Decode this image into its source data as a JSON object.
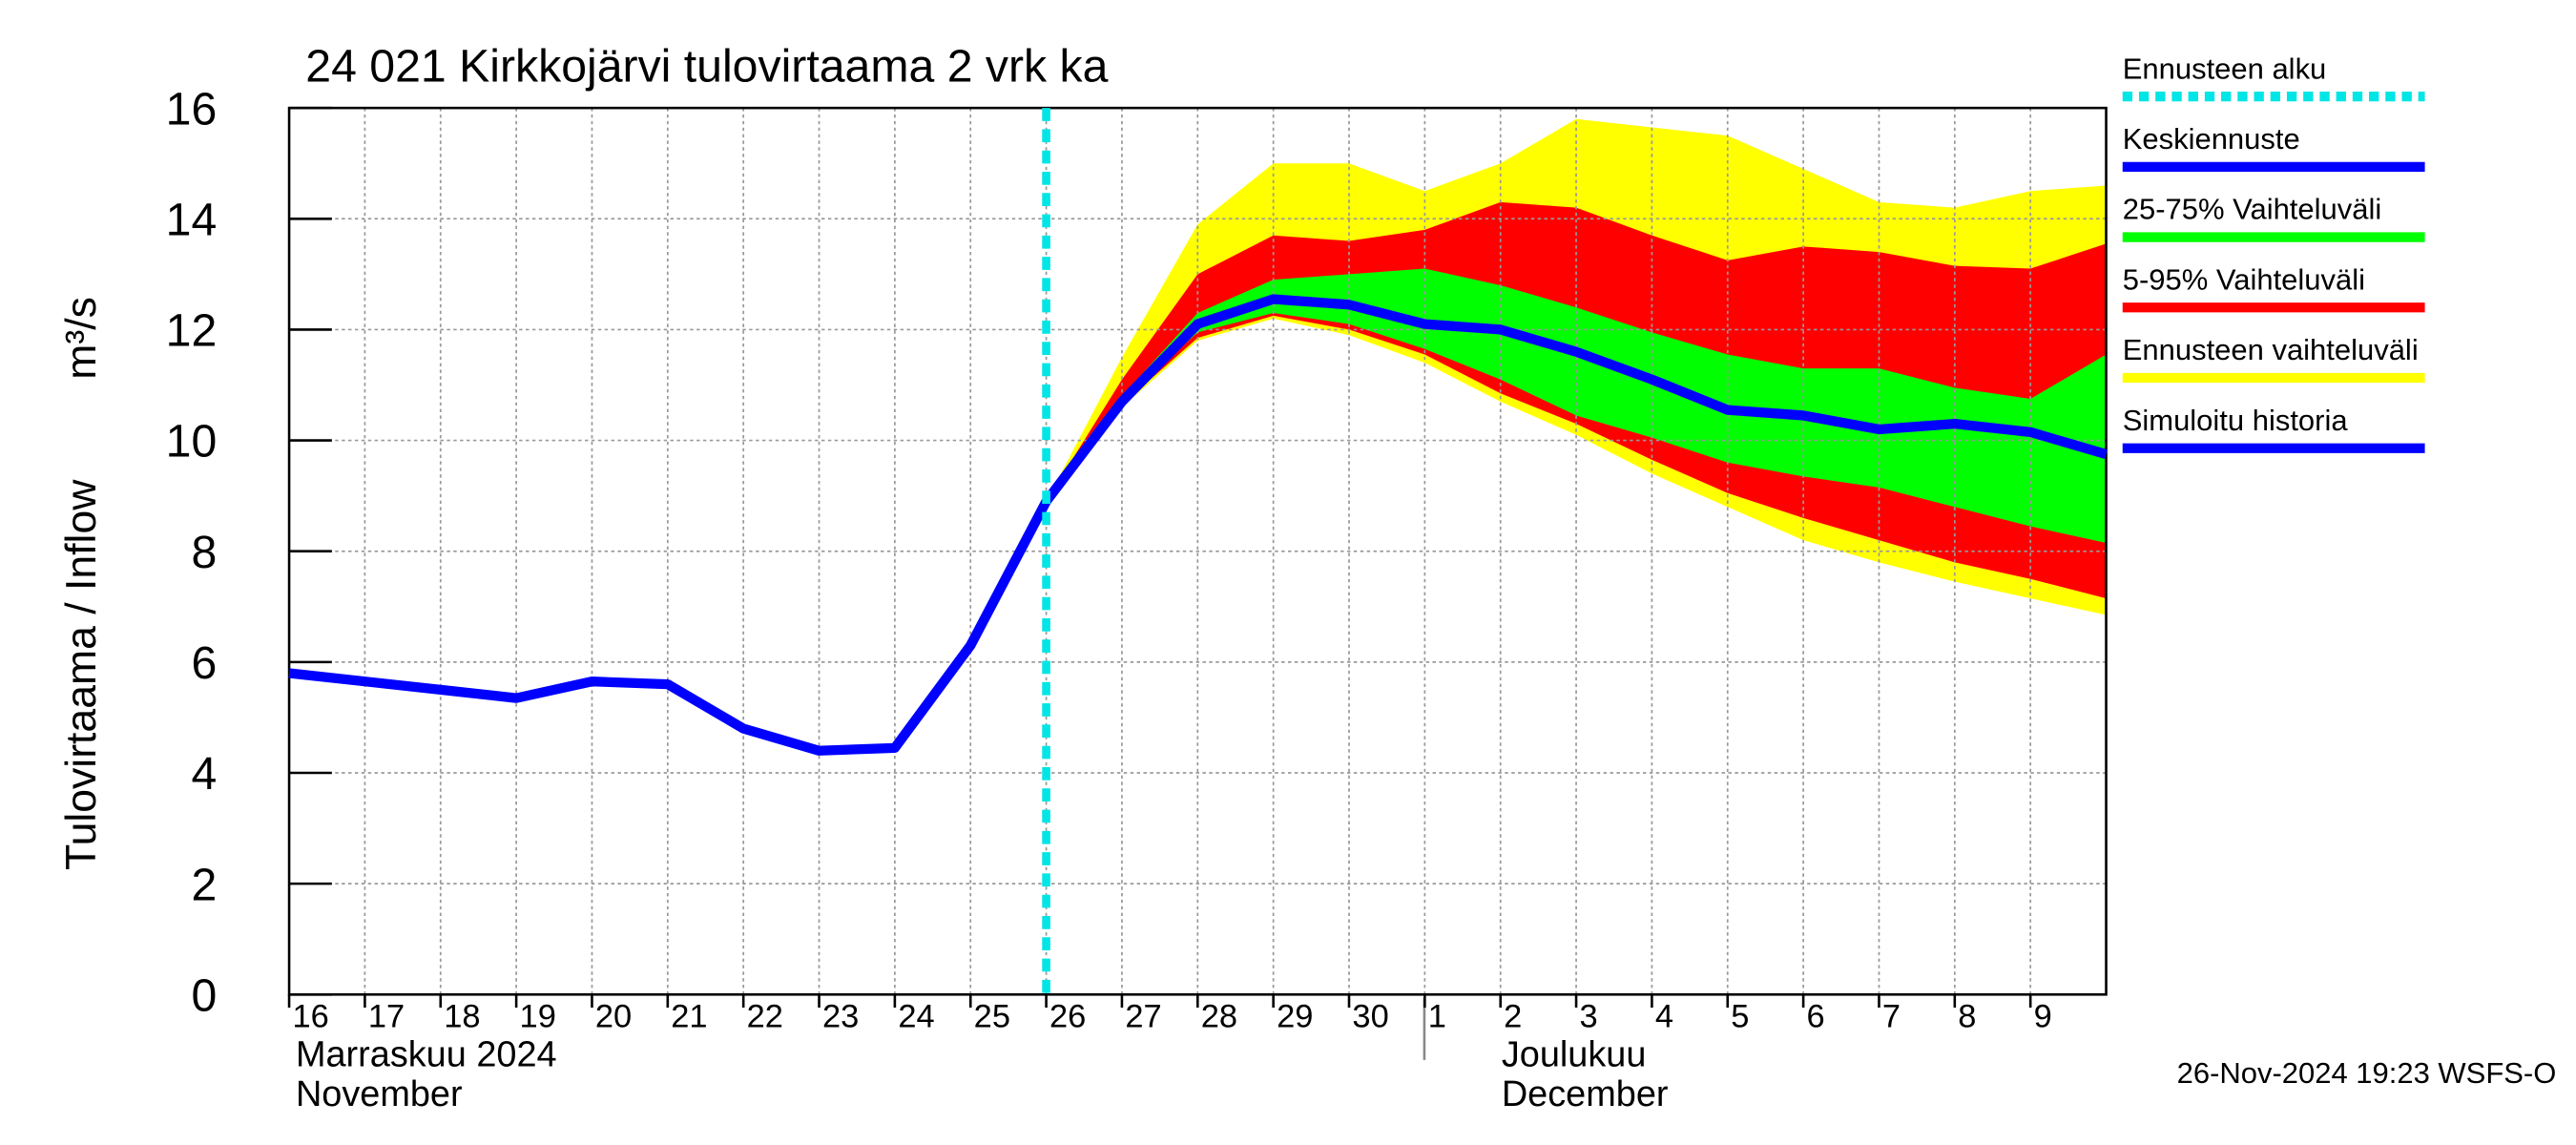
{
  "chart_data": {
    "type": "forecast-band",
    "title": "24 021 Kirkkojärvi tulovirtaama 2 vrk ka",
    "y_label": "Tulovirtaama / Inflow",
    "y_unit": "m³/s",
    "month_labels": [
      "Marraskuu 2024",
      "November",
      "Joulukuu",
      "December"
    ],
    "timestamp": "26-Nov-2024 19:23 WSFS-O",
    "ylim": [
      0,
      16
    ],
    "yticks": [
      0,
      2,
      4,
      6,
      8,
      10,
      12,
      14,
      16
    ],
    "xlim": [
      "2024-11-16",
      "2024-12-10"
    ],
    "xticks": [
      {
        "value": "2024-11-16",
        "label": "16"
      },
      {
        "value": "2024-11-17",
        "label": "17"
      },
      {
        "value": "2024-11-18",
        "label": "18"
      },
      {
        "value": "2024-11-19",
        "label": "19"
      },
      {
        "value": "2024-11-20",
        "label": "20"
      },
      {
        "value": "2024-11-21",
        "label": "21"
      },
      {
        "value": "2024-11-22",
        "label": "22"
      },
      {
        "value": "2024-11-23",
        "label": "23"
      },
      {
        "value": "2024-11-24",
        "label": "24"
      },
      {
        "value": "2024-11-25",
        "label": "25"
      },
      {
        "value": "2024-11-26",
        "label": "26"
      },
      {
        "value": "2024-11-27",
        "label": "27"
      },
      {
        "value": "2024-11-28",
        "label": "28"
      },
      {
        "value": "2024-11-29",
        "label": "29"
      },
      {
        "value": "2024-11-30",
        "label": "30"
      },
      {
        "value": "2024-12-01",
        "label": "1"
      },
      {
        "value": "2024-12-02",
        "label": "2"
      },
      {
        "value": "2024-12-03",
        "label": "3"
      },
      {
        "value": "2024-12-04",
        "label": "4"
      },
      {
        "value": "2024-12-05",
        "label": "5"
      },
      {
        "value": "2024-12-06",
        "label": "6"
      },
      {
        "value": "2024-12-07",
        "label": "7"
      },
      {
        "value": "2024-12-08",
        "label": "8"
      },
      {
        "value": "2024-12-09",
        "label": "9"
      }
    ],
    "grid": true,
    "forecast_start": {
      "name": "Ennusteen alku",
      "x": "2024-11-26",
      "color": "#00e5e5"
    },
    "series": [
      {
        "name": "Keskiennuste",
        "color": "#0000ff",
        "x": [
          "2024-11-26",
          "2024-11-27",
          "2024-11-28",
          "2024-11-29",
          "2024-11-30",
          "2024-12-01",
          "2024-12-02",
          "2024-12-03",
          "2024-12-04",
          "2024-12-05",
          "2024-12-06",
          "2024-12-07",
          "2024-12-08",
          "2024-12-09",
          "2024-12-10"
        ],
        "values": [
          8.9,
          10.7,
          12.1,
          12.55,
          12.45,
          12.1,
          12.0,
          11.6,
          11.1,
          10.55,
          10.45,
          10.2,
          10.3,
          10.15,
          9.75
        ]
      },
      {
        "name": "25-75% Vaihteluväli",
        "color": "#00ff00",
        "x": [
          "2024-11-26",
          "2024-11-27",
          "2024-11-28",
          "2024-11-29",
          "2024-11-30",
          "2024-12-01",
          "2024-12-02",
          "2024-12-03",
          "2024-12-04",
          "2024-12-05",
          "2024-12-06",
          "2024-12-07",
          "2024-12-08",
          "2024-12-09",
          "2024-12-10"
        ],
        "low": [
          8.9,
          10.7,
          11.95,
          12.3,
          12.1,
          11.65,
          11.1,
          10.45,
          10.05,
          9.6,
          9.35,
          9.15,
          8.8,
          8.45,
          8.15
        ],
        "high": [
          8.9,
          10.8,
          12.3,
          12.9,
          13.0,
          13.1,
          12.8,
          12.4,
          11.95,
          11.55,
          11.3,
          11.3,
          10.95,
          10.75,
          11.55
        ]
      },
      {
        "name": "5-95% Vaihteluväli",
        "color": "#ff0000",
        "x": [
          "2024-11-26",
          "2024-11-27",
          "2024-11-28",
          "2024-11-29",
          "2024-11-30",
          "2024-12-01",
          "2024-12-02",
          "2024-12-03",
          "2024-12-04",
          "2024-12-05",
          "2024-12-06",
          "2024-12-07",
          "2024-12-08",
          "2024-12-09",
          "2024-12-10"
        ],
        "low": [
          8.9,
          10.65,
          11.85,
          12.25,
          12.0,
          11.55,
          10.85,
          10.3,
          9.65,
          9.05,
          8.6,
          8.2,
          7.8,
          7.5,
          7.15
        ],
        "high": [
          8.9,
          11.1,
          13.0,
          13.7,
          13.6,
          13.8,
          14.3,
          14.2,
          13.7,
          13.25,
          13.5,
          13.4,
          13.15,
          13.1,
          13.55
        ]
      },
      {
        "name": "Ennusteen vaihteluväli",
        "color": "#ffff00",
        "x": [
          "2024-11-26",
          "2024-11-27",
          "2024-11-28",
          "2024-11-29",
          "2024-11-30",
          "2024-12-01",
          "2024-12-02",
          "2024-12-03",
          "2024-12-04",
          "2024-12-05",
          "2024-12-06",
          "2024-12-07",
          "2024-12-08",
          "2024-12-09",
          "2024-12-10"
        ],
        "low": [
          8.9,
          10.6,
          11.8,
          12.2,
          11.9,
          11.4,
          10.7,
          10.1,
          9.4,
          8.8,
          8.2,
          7.8,
          7.45,
          7.15,
          6.85
        ],
        "high": [
          8.9,
          11.5,
          13.9,
          15.0,
          15.0,
          14.5,
          15.0,
          15.8,
          15.65,
          15.5,
          14.9,
          14.3,
          14.2,
          14.5,
          14.6
        ]
      },
      {
        "name": "Simuloitu historia",
        "color": "#0000ff",
        "x": [
          "2024-11-16",
          "2024-11-17",
          "2024-11-18",
          "2024-11-19",
          "2024-11-20",
          "2024-11-21",
          "2024-11-22",
          "2024-11-23",
          "2024-11-24",
          "2024-11-25",
          "2024-11-26"
        ],
        "values": [
          5.8,
          5.65,
          5.5,
          5.35,
          5.65,
          5.6,
          4.8,
          4.4,
          4.45,
          6.3,
          8.9
        ]
      }
    ]
  }
}
